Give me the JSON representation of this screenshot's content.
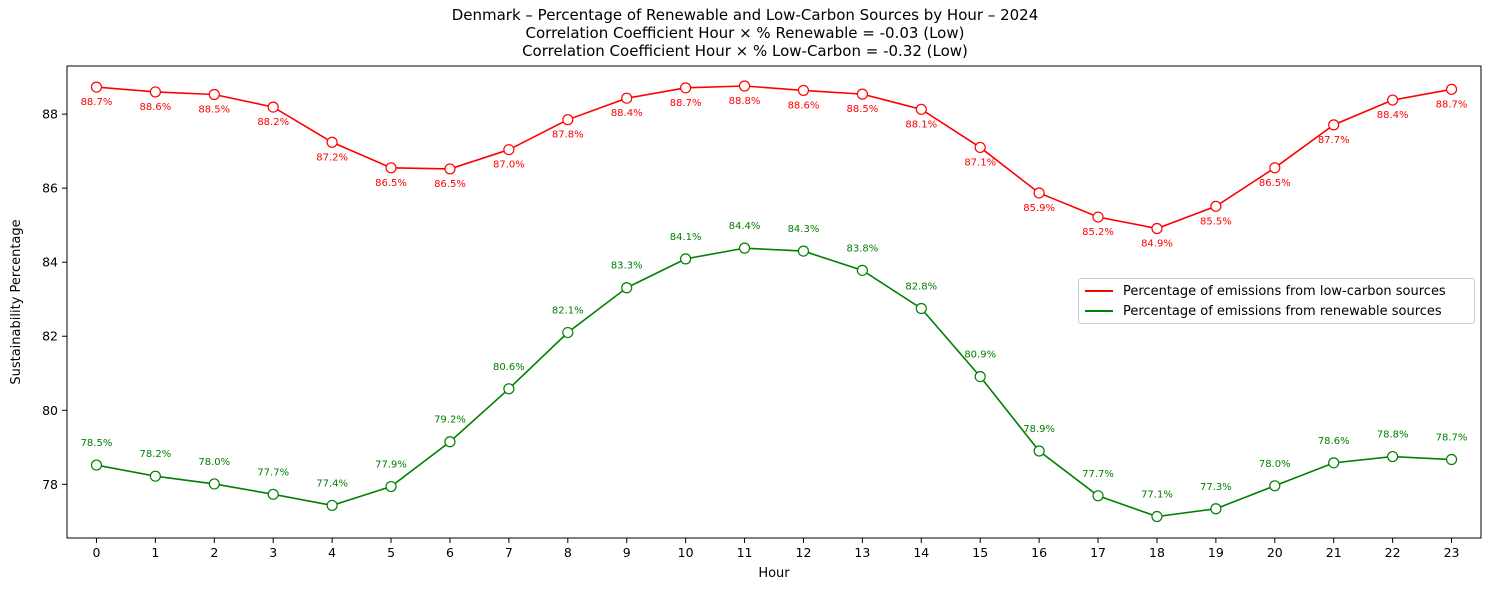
{
  "chart_data": {
    "type": "line",
    "title": "Denmark – Percentage of Renewable and Low-Carbon Sources by Hour – 2024",
    "subtitle_lines": [
      "Correlation Coefficient Hour × % Renewable = -0.03 (Low)",
      "Correlation Coefficient Hour × % Low-Carbon = -0.32 (Low)"
    ],
    "xlabel": "Hour",
    "ylabel": "Sustainability Percentage",
    "x": [
      0,
      1,
      2,
      3,
      4,
      5,
      6,
      7,
      8,
      9,
      10,
      11,
      12,
      13,
      14,
      15,
      16,
      17,
      18,
      19,
      20,
      21,
      22,
      23
    ],
    "xlim": [
      -0.5,
      23.5
    ],
    "ylim": [
      76.55,
      89.3
    ],
    "yticks": [
      78,
      80,
      82,
      84,
      86,
      88
    ],
    "grid": false,
    "legend_position": "center-right",
    "series": [
      {
        "name": "Percentage of emissions from low-carbon sources",
        "color": "#ff0000",
        "label_position": "below",
        "values": [
          88.73,
          88.6,
          88.53,
          88.19,
          87.24,
          86.55,
          86.52,
          87.04,
          87.85,
          88.43,
          88.71,
          88.76,
          88.64,
          88.54,
          88.13,
          87.1,
          85.87,
          85.22,
          84.91,
          85.51,
          86.55,
          87.71,
          88.38,
          88.67
        ],
        "labels": [
          "88.7%",
          "88.6%",
          "88.5%",
          "88.2%",
          "87.2%",
          "86.5%",
          "86.5%",
          "87.0%",
          "87.8%",
          "88.4%",
          "88.7%",
          "88.8%",
          "88.6%",
          "88.5%",
          "88.1%",
          "87.1%",
          "85.9%",
          "85.2%",
          "84.9%",
          "85.5%",
          "86.5%",
          "87.7%",
          "88.4%",
          "88.7%"
        ]
      },
      {
        "name": "Percentage of emissions from renewable sources",
        "color": "#008000",
        "label_position": "above",
        "values": [
          78.52,
          78.22,
          78.01,
          77.73,
          77.43,
          77.94,
          79.15,
          80.58,
          82.1,
          83.31,
          84.09,
          84.38,
          84.3,
          83.78,
          82.75,
          80.91,
          78.9,
          77.69,
          77.13,
          77.34,
          77.96,
          78.58,
          78.75,
          78.67
        ],
        "labels": [
          "78.5%",
          "78.2%",
          "78.0%",
          "77.7%",
          "77.4%",
          "77.9%",
          "79.2%",
          "80.6%",
          "82.1%",
          "83.3%",
          "84.1%",
          "84.4%",
          "84.3%",
          "83.8%",
          "82.8%",
          "80.9%",
          "78.9%",
          "77.7%",
          "77.1%",
          "77.3%",
          "78.0%",
          "78.6%",
          "78.8%",
          "78.7%"
        ]
      }
    ]
  }
}
